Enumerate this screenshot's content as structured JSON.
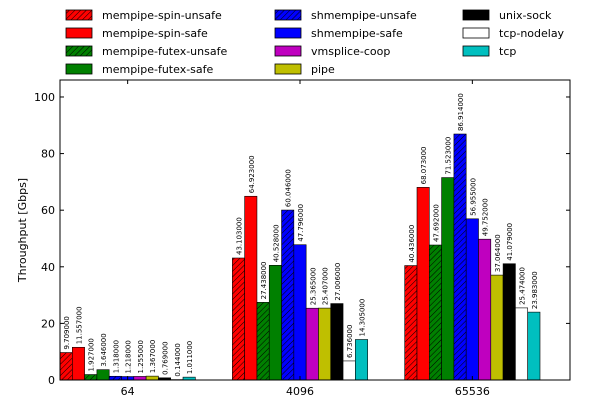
{
  "chart_data": {
    "type": "bar",
    "title": "",
    "xlabel": "",
    "ylabel": "Throughput [Gbps]",
    "ylim": [
      0,
      106
    ],
    "yticks": [
      0,
      20,
      40,
      60,
      80,
      100
    ],
    "grid": false,
    "legend_placement": "top, outside plot, 3 columns",
    "categories": [
      "64",
      "4096",
      "65536"
    ],
    "series": [
      {
        "name": "mempipe-spin-unsafe",
        "color": "#ff0000",
        "hatch": true,
        "values": [
          9.709,
          43.103,
          40.436
        ],
        "labels": [
          "9.709000",
          "43.103000",
          "40.436000"
        ]
      },
      {
        "name": "mempipe-spin-safe",
        "color": "#ff0000",
        "hatch": false,
        "values": [
          11.557,
          64.923,
          68.073
        ],
        "labels": [
          "11.557000",
          "64.923000",
          "68.073000"
        ]
      },
      {
        "name": "mempipe-futex-unsafe",
        "color": "#008000",
        "hatch": true,
        "values": [
          1.927,
          27.438,
          47.692
        ],
        "labels": [
          "1.927000",
          "27.438000",
          "47.692000"
        ]
      },
      {
        "name": "mempipe-futex-safe",
        "color": "#008000",
        "hatch": false,
        "values": [
          3.646,
          40.528,
          71.523
        ],
        "labels": [
          "3.646000",
          "40.528000",
          "71.523000"
        ]
      },
      {
        "name": "shmempipe-unsafe",
        "color": "#0000ff",
        "hatch": true,
        "values": [
          1.318,
          60.046,
          86.914
        ],
        "labels": [
          "1.318000",
          "60.046000",
          "86.914000"
        ]
      },
      {
        "name": "shmempipe-safe",
        "color": "#0000ff",
        "hatch": false,
        "values": [
          1.218,
          47.796,
          56.955
        ],
        "labels": [
          "1.218000",
          "47.796000",
          "56.955000"
        ]
      },
      {
        "name": "vmsplice-coop",
        "color": "#bf00bf",
        "hatch": false,
        "values": [
          1.255,
          25.365,
          49.752
        ],
        "labels": [
          "1.255000",
          "25.365000",
          "49.752000"
        ]
      },
      {
        "name": "pipe",
        "color": "#bfbf00",
        "hatch": false,
        "values": [
          1.367,
          25.407,
          37.064
        ],
        "labels": [
          "1.367000",
          "25.407000",
          "37.064000"
        ]
      },
      {
        "name": "unix-sock",
        "color": "#000000",
        "hatch": false,
        "values": [
          0.769,
          27.006,
          41.079
        ],
        "labels": [
          "0.769000",
          "27.006000",
          "41.079000"
        ]
      },
      {
        "name": "tcp-nodelay",
        "color": "#ffffff",
        "hatch": false,
        "values": [
          0.144,
          6.736,
          25.474
        ],
        "labels": [
          "0.144000",
          "6.736000",
          "25.474000"
        ]
      },
      {
        "name": "tcp",
        "color": "#00bfbf",
        "hatch": false,
        "values": [
          1.011,
          14.305,
          23.983
        ],
        "labels": [
          "1.011000",
          "14.305000",
          "23.983000"
        ]
      }
    ]
  }
}
